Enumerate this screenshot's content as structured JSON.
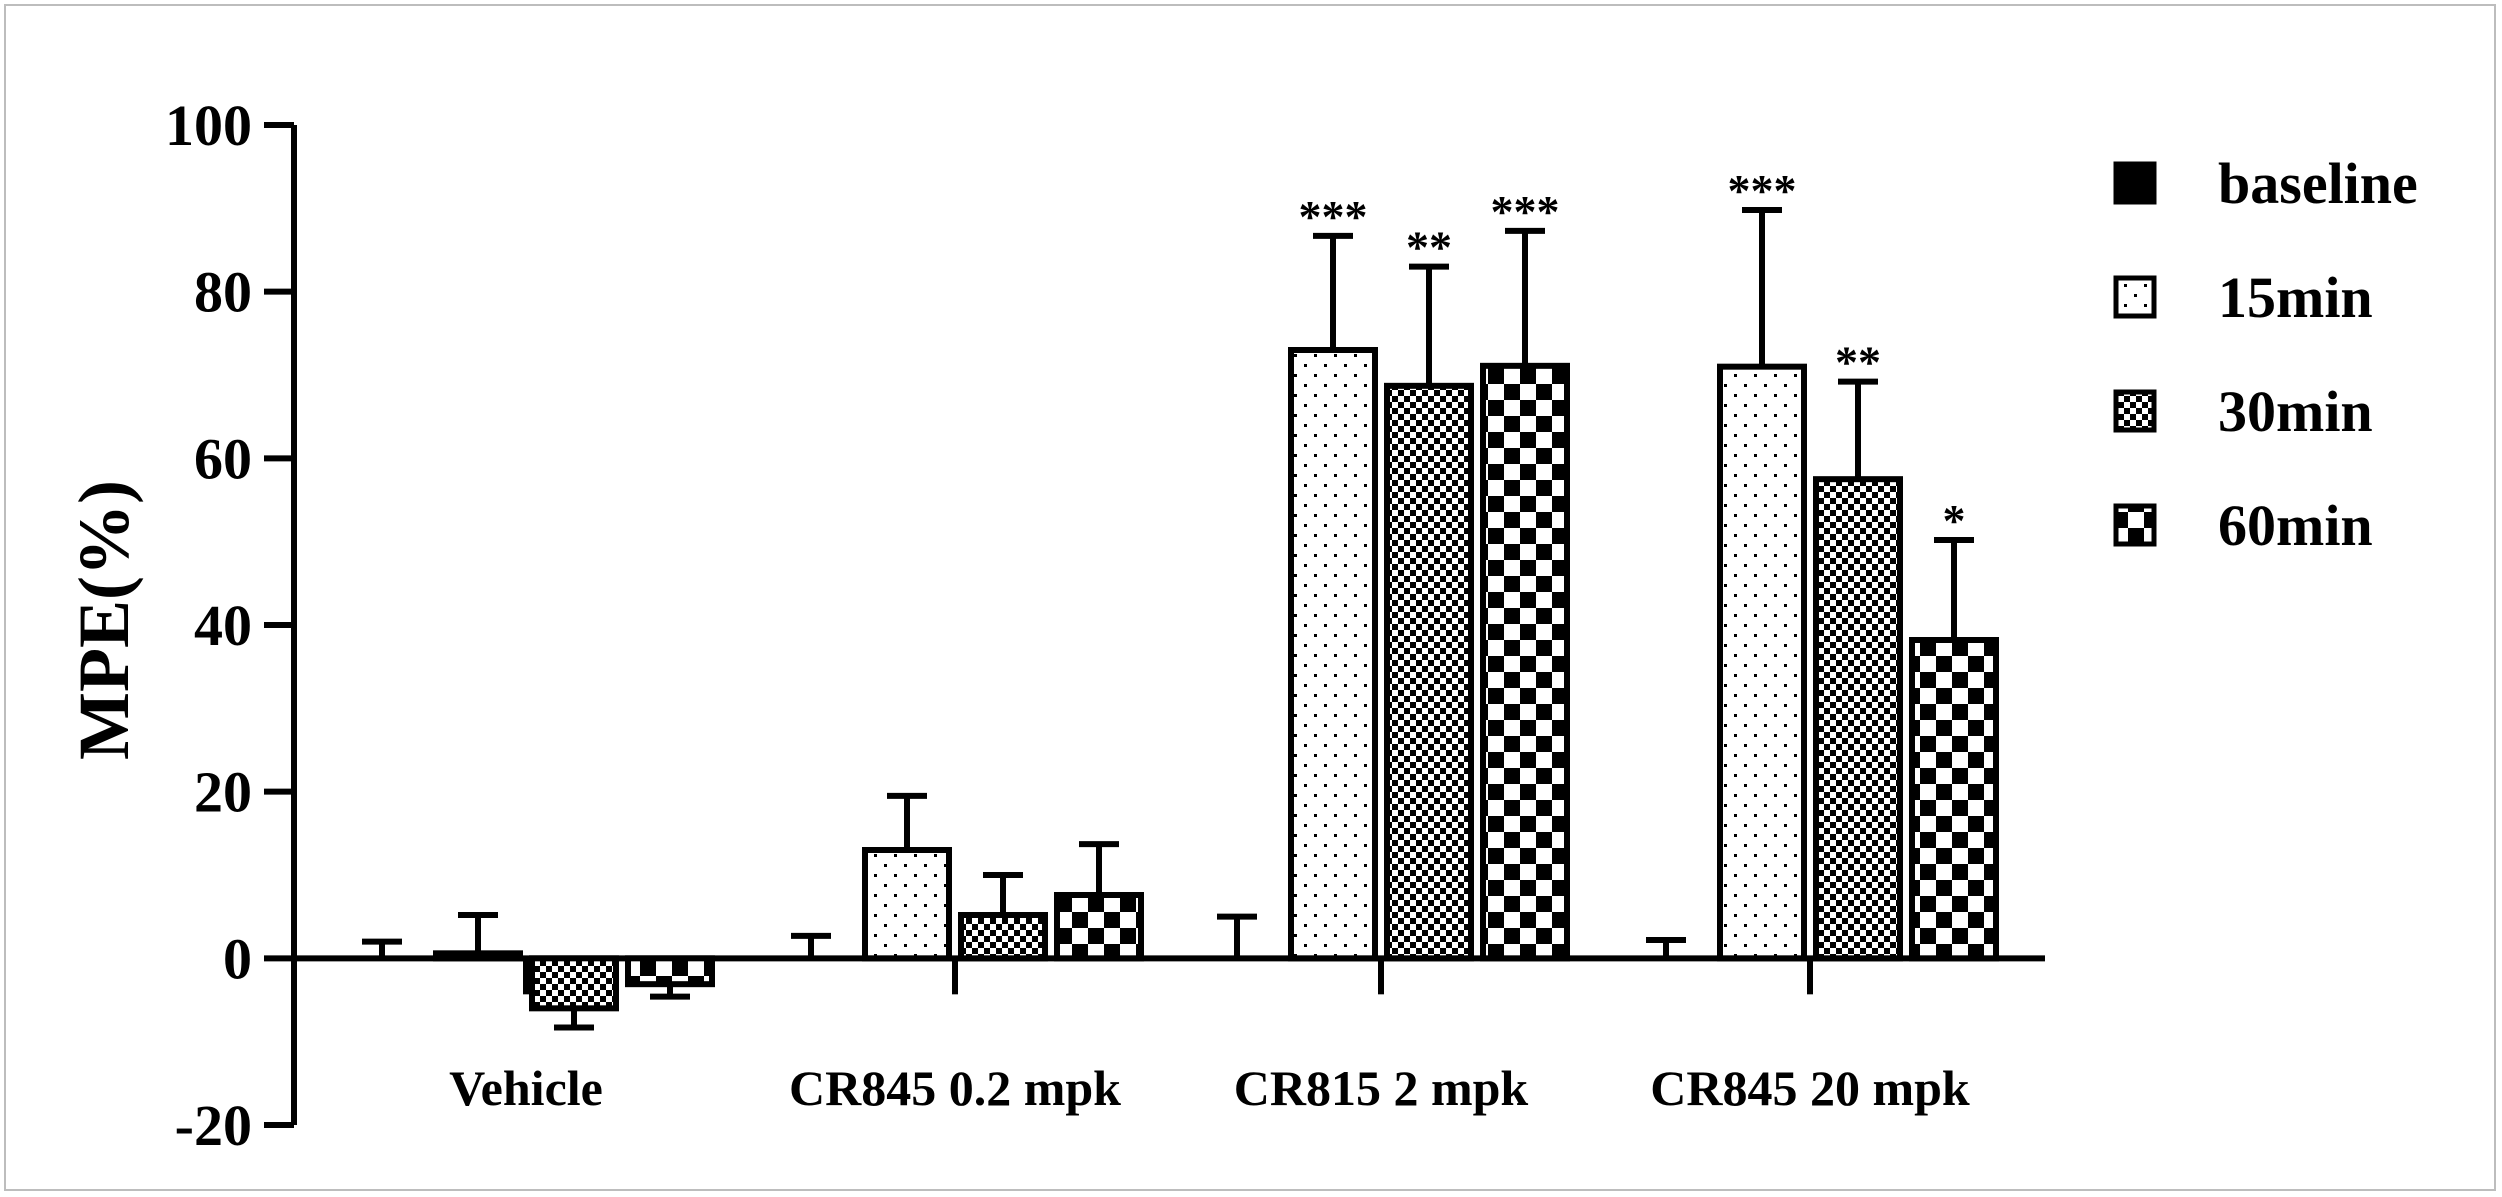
{
  "chart_data": {
    "type": "bar",
    "title": "",
    "xlabel": "",
    "ylabel": "MPE(%)",
    "ylim": [
      -20,
      100
    ],
    "yticks": [
      100,
      80,
      60,
      40,
      20,
      0,
      -20
    ],
    "categories": [
      "Vehicle",
      "CR845 0.2 mpk",
      "CR815 2 mpk",
      "CR845 20 mpk"
    ],
    "legend_position": "right",
    "grid": false,
    "series": [
      {
        "name": "baseline",
        "pattern": "solid",
        "values": [
          0,
          0,
          0,
          0
        ],
        "errors": [
          2,
          2.7,
          5,
          2.2
        ],
        "significance": [
          "",
          "",
          "",
          ""
        ]
      },
      {
        "name": "15min",
        "pattern": "dots",
        "values": [
          0.6,
          13,
          73,
          71
        ],
        "errors": [
          4.6,
          6.5,
          13.7,
          18.8
        ],
        "significance": [
          "",
          "",
          "***",
          "***"
        ]
      },
      {
        "name": "30min",
        "pattern": "fine-check",
        "values": [
          -6,
          5.2,
          68.7,
          57.5
        ],
        "errors": [
          2.3,
          4.8,
          14.3,
          11.7
        ],
        "significance": [
          "",
          "",
          "**",
          "**"
        ]
      },
      {
        "name": "60min",
        "pattern": "coarse-check",
        "values": [
          -3.1,
          7.6,
          71.1,
          38.2
        ],
        "errors": [
          1.5,
          6.1,
          16.2,
          12
        ],
        "significance": [
          "",
          "",
          "***",
          "*"
        ]
      }
    ]
  }
}
